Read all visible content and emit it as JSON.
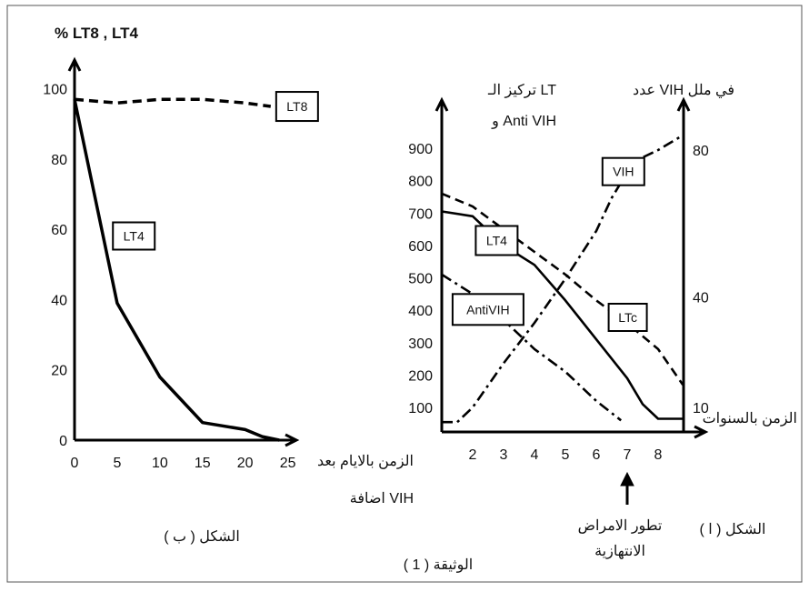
{
  "document": {
    "caption": "الوثيقة ( 1 )"
  },
  "chart_data": [
    {
      "id": "b",
      "type": "line",
      "caption": "الشكل ( ب )",
      "ylabel": "% LT8 , LT4",
      "xlabel": [
        "الزمن بالايام بعد",
        "اضافة VIH"
      ],
      "x_ticks": [
        0,
        5,
        10,
        15,
        20,
        25
      ],
      "y_ticks": [
        0,
        20,
        40,
        60,
        80,
        100
      ],
      "xlim": [
        0,
        26
      ],
      "ylim": [
        0,
        102
      ],
      "series": [
        {
          "name": "LT8",
          "style": "dashed",
          "x": [
            0,
            5,
            10,
            15,
            20,
            23
          ],
          "y": [
            97,
            96,
            97,
            97,
            96,
            95
          ]
        },
        {
          "name": "LT4",
          "style": "solid",
          "x": [
            0,
            5,
            10,
            15,
            20,
            22,
            24
          ],
          "y": [
            97,
            39,
            18,
            5,
            3,
            1,
            0
          ]
        }
      ]
    },
    {
      "id": "a",
      "type": "line",
      "caption": "الشكل ( ا )",
      "ylabel_left": [
        "تركيز الـ LT",
        "و Anti VIH"
      ],
      "ylabel_right": "عدد VIH في ملل",
      "xlabel": "الزمن بالسنوات",
      "x_ticks": [
        2,
        3,
        4,
        5,
        6,
        7,
        8
      ],
      "y_ticks_left": [
        100,
        200,
        300,
        400,
        500,
        600,
        700,
        800,
        900
      ],
      "y_ticks_right": [
        10,
        40,
        80
      ],
      "xlim": [
        1,
        9
      ],
      "ylim_left": [
        40,
        960
      ],
      "annotation": [
        "تطور الامراض",
        "الانتهازية"
      ],
      "annotation_x": 7,
      "series": [
        {
          "name": "VIH",
          "style": "dash-dot",
          "axis": "right",
          "x": [
            1,
            1.5,
            2,
            3,
            4,
            5,
            6,
            6.5,
            7,
            7.5,
            8,
            8.8
          ],
          "y": [
            6,
            6,
            10,
            22,
            33,
            45,
            58,
            67,
            74,
            78,
            80,
            84
          ]
        },
        {
          "name": "LT4",
          "style": "solid",
          "x": [
            1,
            2,
            3,
            4,
            5,
            6,
            7,
            7.5,
            8,
            8.8
          ],
          "y": [
            705,
            690,
            600,
            540,
            430,
            310,
            190,
            110,
            65,
            65
          ]
        },
        {
          "name": "LTc",
          "style": "dashed",
          "x": [
            1,
            2,
            3,
            4,
            5,
            6,
            7,
            8,
            8.8
          ],
          "y": [
            760,
            720,
            650,
            580,
            510,
            430,
            360,
            280,
            170
          ]
        },
        {
          "name": "AntiVIH",
          "style": "dash-dot",
          "x": [
            1,
            2,
            3,
            4,
            5,
            6,
            6.8
          ],
          "y": [
            510,
            450,
            370,
            280,
            210,
            120,
            60
          ]
        }
      ]
    }
  ]
}
